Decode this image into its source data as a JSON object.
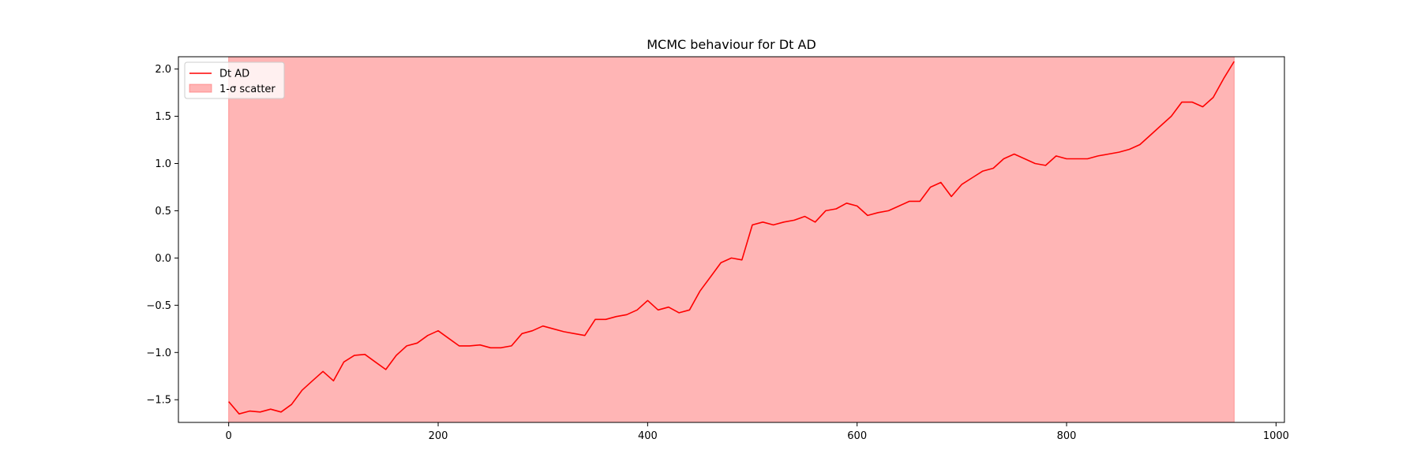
{
  "chart_data": {
    "type": "line",
    "title": "MCMC behaviour for Dt AD",
    "xlabel": "",
    "ylabel": "",
    "xlim": [
      -48,
      1008
    ],
    "ylim": [
      -1.74,
      2.13
    ],
    "x_ticks": [
      0,
      200,
      400,
      600,
      800,
      1000
    ],
    "x_tick_labels": [
      "0",
      "200",
      "400",
      "600",
      "800",
      "1000"
    ],
    "y_ticks": [
      -1.5,
      -1.0,
      -0.5,
      0.0,
      0.5,
      1.0,
      1.5,
      2.0
    ],
    "y_tick_labels": [
      "−1.5",
      "−1.0",
      "−0.5",
      "0.0",
      "0.5",
      "1.0",
      "1.5",
      "2.0"
    ],
    "grid": false,
    "legend_position": "top-left",
    "series": [
      {
        "name": "Dt AD",
        "color": "#ff0000",
        "x": [
          0,
          10,
          20,
          30,
          40,
          50,
          60,
          70,
          80,
          90,
          100,
          110,
          120,
          130,
          140,
          150,
          160,
          170,
          180,
          190,
          200,
          210,
          220,
          230,
          240,
          250,
          260,
          270,
          280,
          290,
          300,
          310,
          320,
          330,
          340,
          350,
          360,
          370,
          380,
          390,
          400,
          410,
          420,
          430,
          440,
          450,
          460,
          470,
          480,
          490,
          500,
          510,
          520,
          530,
          540,
          550,
          560,
          570,
          580,
          590,
          600,
          610,
          620,
          630,
          640,
          650,
          660,
          670,
          680,
          690,
          700,
          710,
          720,
          730,
          740,
          750,
          760,
          770,
          780,
          790,
          800,
          810,
          820,
          830,
          840,
          850,
          860,
          870,
          880,
          890,
          900,
          910,
          920,
          930,
          940,
          950,
          960
        ],
        "y": [
          -1.52,
          -1.65,
          -1.62,
          -1.63,
          -1.6,
          -1.63,
          -1.55,
          -1.4,
          -1.3,
          -1.2,
          -1.3,
          -1.1,
          -1.03,
          -1.02,
          -1.1,
          -1.18,
          -1.03,
          -0.93,
          -0.9,
          -0.82,
          -0.77,
          -0.85,
          -0.93,
          -0.93,
          -0.92,
          -0.95,
          -0.95,
          -0.93,
          -0.8,
          -0.77,
          -0.72,
          -0.75,
          -0.78,
          -0.8,
          -0.82,
          -0.65,
          -0.65,
          -0.62,
          -0.6,
          -0.55,
          -0.45,
          -0.55,
          -0.52,
          -0.58,
          -0.55,
          -0.35,
          -0.2,
          -0.05,
          0.0,
          -0.02,
          0.35,
          0.38,
          0.35,
          0.38,
          0.4,
          0.44,
          0.38,
          0.5,
          0.52,
          0.58,
          0.55,
          0.45,
          0.48,
          0.5,
          0.55,
          0.6,
          0.6,
          0.75,
          0.8,
          0.65,
          0.78,
          0.85,
          0.92,
          0.95,
          1.05,
          1.1,
          1.05,
          1.0,
          0.98,
          1.08,
          1.05,
          1.05,
          1.05,
          1.08,
          1.1,
          1.12,
          1.15,
          1.2,
          1.3,
          1.4,
          1.5,
          1.65,
          1.65,
          1.6,
          1.7,
          1.9,
          2.08
        ]
      }
    ],
    "band": {
      "name": "1-σ scatter",
      "color": "#ff6b6b",
      "alpha": 0.5,
      "x_start": 0,
      "x_end": 960
    }
  }
}
